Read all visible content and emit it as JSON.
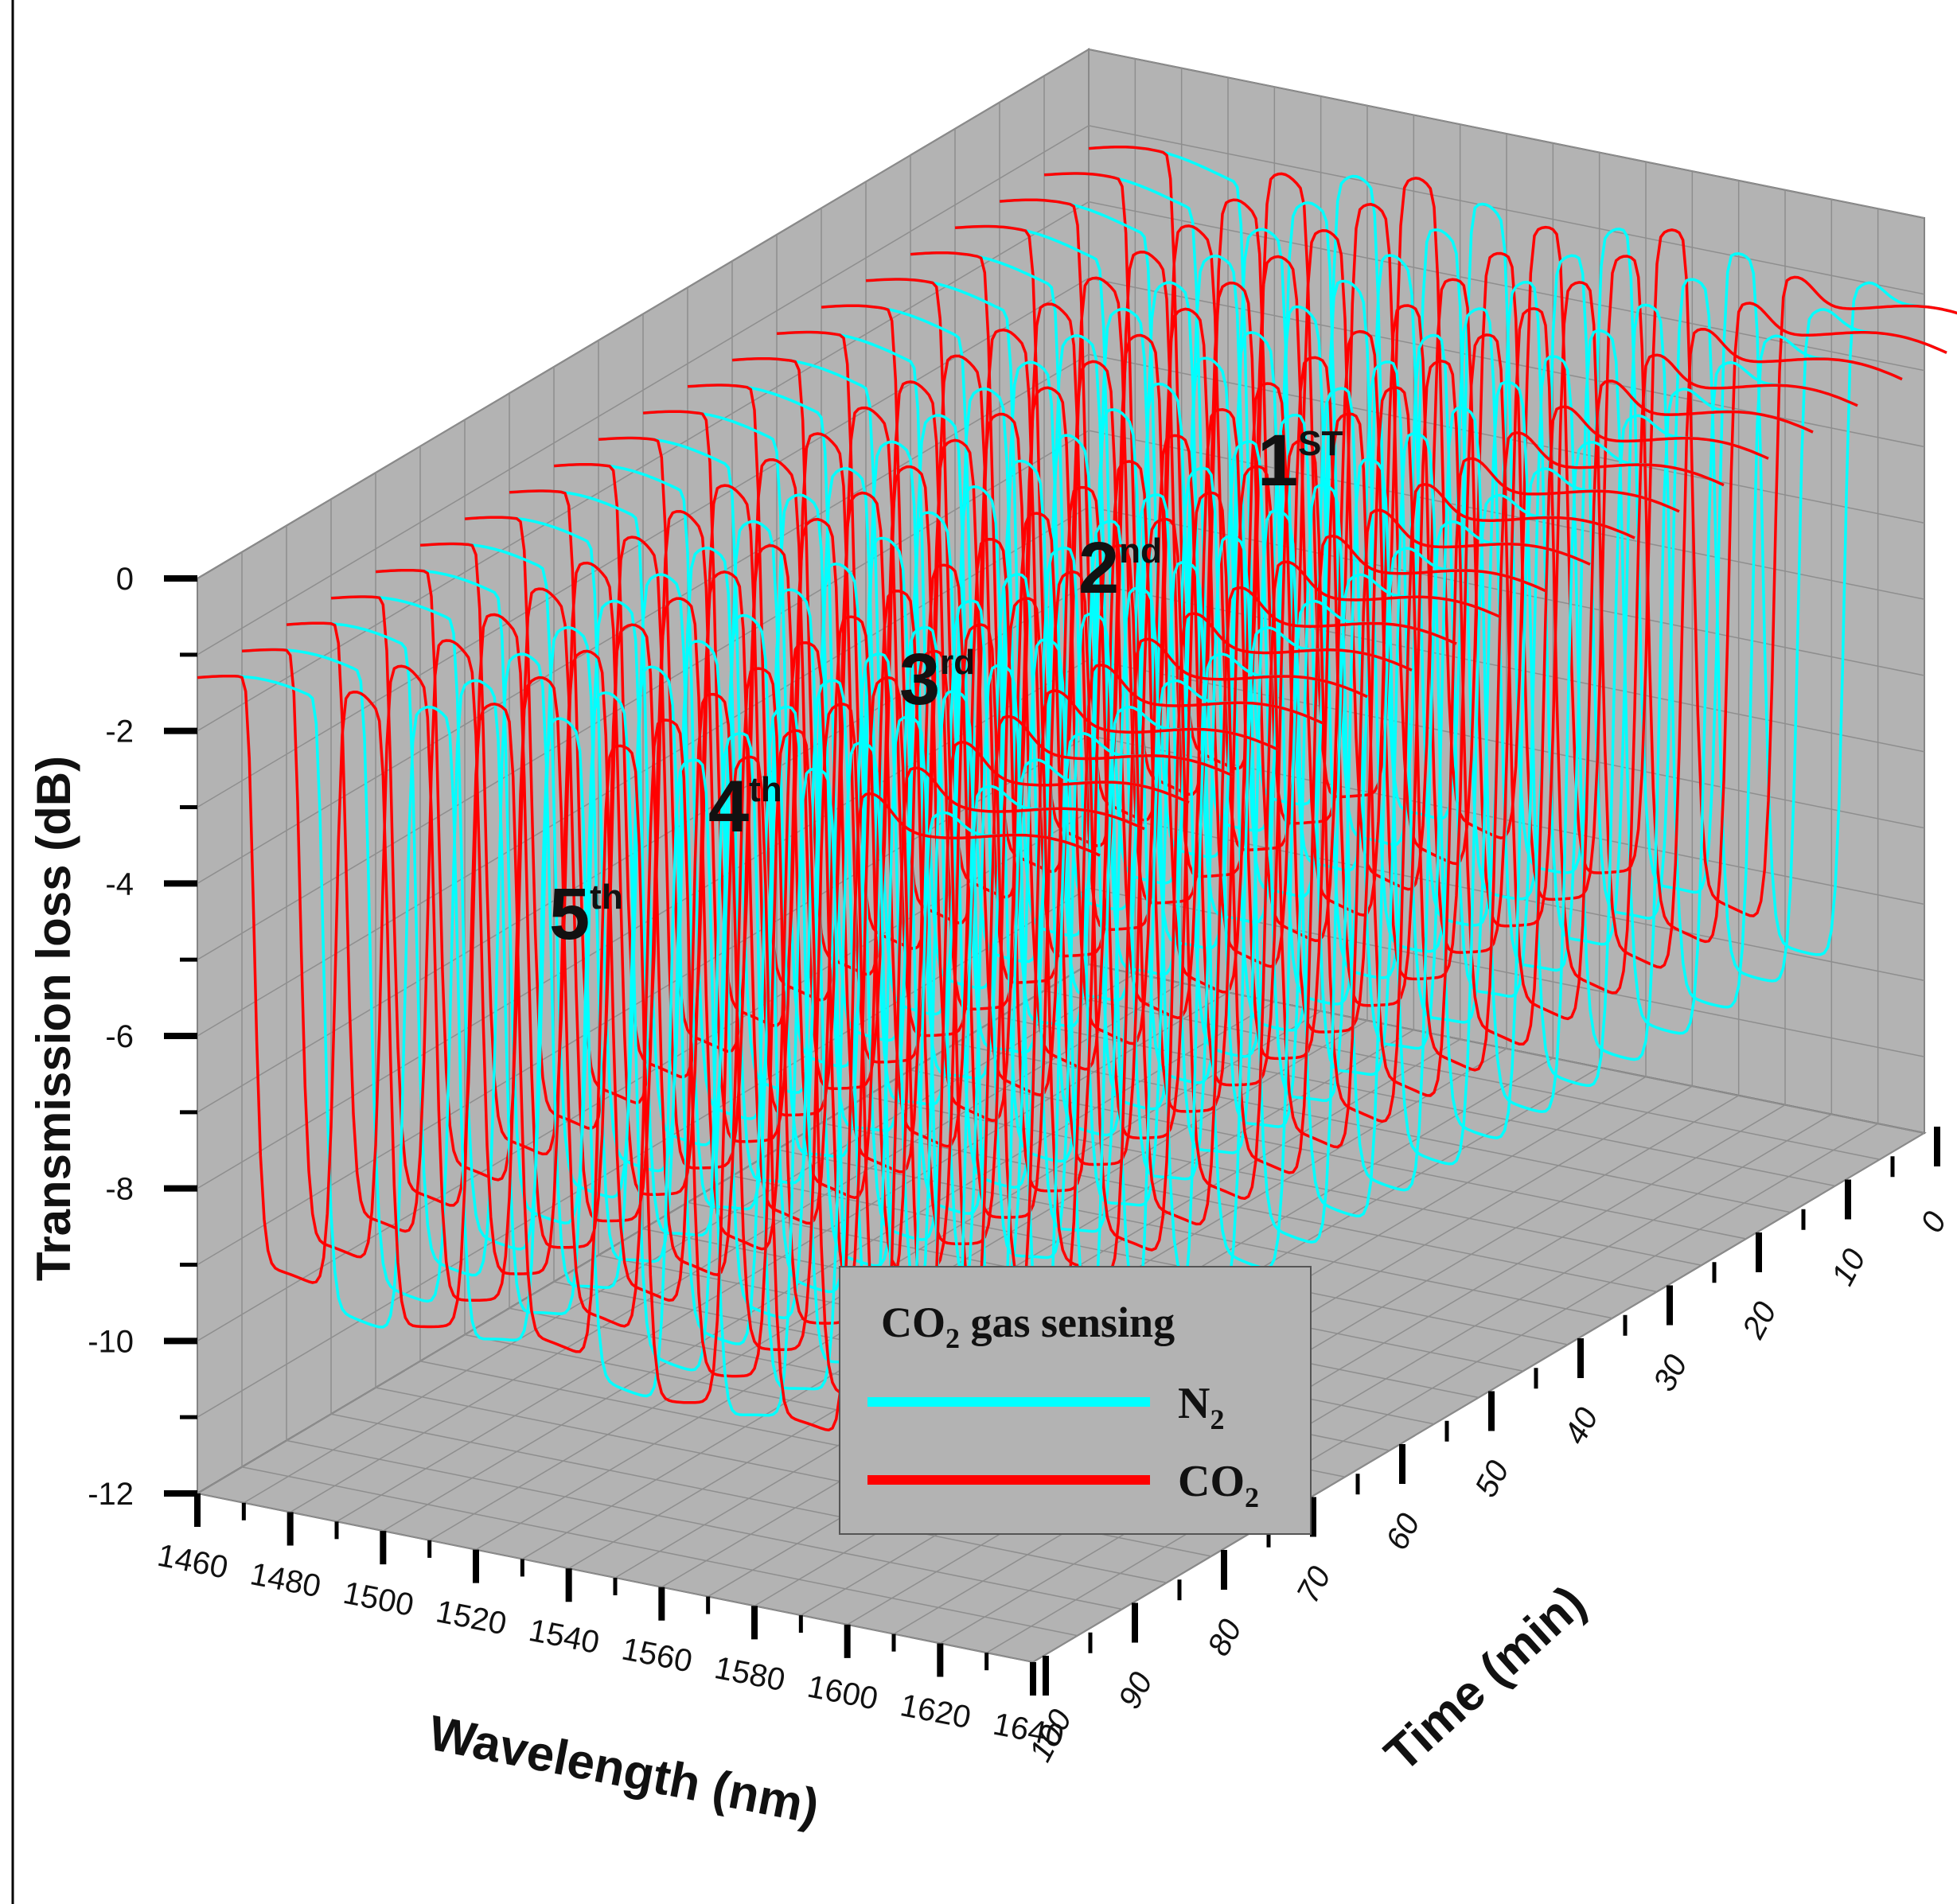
{
  "chart_data": {
    "type": "3d-waterfall-line",
    "title": "",
    "xlabel": "Wavelength (nm)",
    "ylabel": "Time (min)",
    "zlabel": "Transmission loss (dB)",
    "xlim": [
      1460,
      1640
    ],
    "ylim": [
      0,
      100
    ],
    "zlim": [
      -12,
      0
    ],
    "x_ticks": [
      "1460",
      "1480",
      "1500",
      "1520",
      "1540",
      "1560",
      "1580",
      "1600",
      "1620",
      "1640"
    ],
    "y_ticks": [
      "0",
      "10",
      "20",
      "30",
      "40",
      "50",
      "60",
      "70",
      "80",
      "90",
      "100"
    ],
    "z_ticks": [
      "0",
      "-2",
      "-4",
      "-6",
      "-8",
      "-10",
      "-12"
    ],
    "grid": true,
    "time_steps": [
      0,
      5,
      10,
      15,
      20,
      25,
      30,
      35,
      40,
      45,
      50,
      55,
      60,
      65,
      70,
      75,
      80,
      85,
      90,
      95,
      100
    ],
    "base_level": -1.3,
    "series": [
      {
        "name": "N2",
        "color": "#00ffff",
        "dips": [
          {
            "order": "1st",
            "center_at_t0": 1614,
            "depth": -9.8,
            "width": 9
          },
          {
            "order": "2nd",
            "center_at_t0": 1587,
            "depth": -9.6,
            "width": 9
          },
          {
            "order": "3rd",
            "center_at_t0": 1560,
            "depth": -9.4,
            "width": 9
          },
          {
            "order": "4th",
            "center_at_t0": 1532,
            "depth": -9.3,
            "width": 9
          },
          {
            "order": "5th",
            "center_at_t0": 1503,
            "depth": -9.2,
            "width": 9
          }
        ]
      },
      {
        "name": "CO2",
        "color": "#ff0000",
        "dips": [
          {
            "order": "1st",
            "center_at_t0": 1599,
            "depth": -9.6,
            "width": 9
          },
          {
            "order": "2nd",
            "center_at_t0": 1572,
            "depth": -9.4,
            "width": 9
          },
          {
            "order": "3rd",
            "center_at_t0": 1545,
            "depth": -9.2,
            "width": 9
          },
          {
            "order": "4th",
            "center_at_t0": 1517,
            "depth": -9.1,
            "width": 9
          },
          {
            "order": "5th",
            "center_at_t0": 1488,
            "depth": -9.0,
            "width": 9
          }
        ]
      }
    ],
    "annotations": [
      {
        "main": "1",
        "sup": "ST"
      },
      {
        "main": "2",
        "sup": "nd"
      },
      {
        "main": "3",
        "sup": "rd"
      },
      {
        "main": "4",
        "sup": "th"
      },
      {
        "main": "5",
        "sup": "th"
      }
    ],
    "legend": {
      "title_main": "CO",
      "title_sub": "2",
      "title_rest": " gas sensing",
      "entries": [
        {
          "main": "N",
          "sub": "2",
          "color": "#00ffff"
        },
        {
          "main": "CO",
          "sub": "2",
          "color": "#ff0000"
        }
      ],
      "position": "bottom-right"
    }
  }
}
